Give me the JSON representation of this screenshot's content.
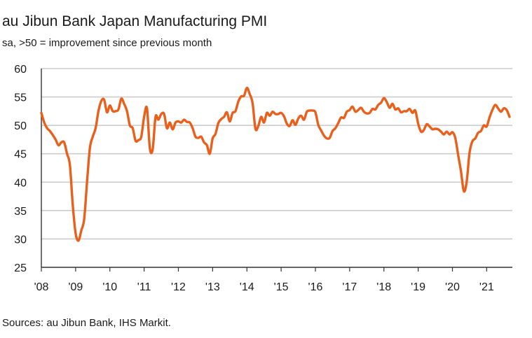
{
  "chart_data": {
    "type": "line",
    "title": "au Jibun Bank Japan Manufacturing PMI",
    "subtitle": "sa, >50 = improvement since previous month",
    "source": "Sources: au Jibun Bank, IHS Markit.",
    "xlabel": "",
    "ylabel": "",
    "ylim": [
      25,
      60
    ],
    "yticks": [
      25,
      30,
      35,
      40,
      45,
      50,
      55,
      60
    ],
    "xlim": [
      2008,
      2021.75
    ],
    "xticks": [
      {
        "value": 2008,
        "label": "'08"
      },
      {
        "value": 2009,
        "label": "'09"
      },
      {
        "value": 2010,
        "label": "'10"
      },
      {
        "value": 2011,
        "label": "'11"
      },
      {
        "value": 2012,
        "label": "'12"
      },
      {
        "value": 2013,
        "label": "'13"
      },
      {
        "value": 2014,
        "label": "'14"
      },
      {
        "value": 2015,
        "label": "'15"
      },
      {
        "value": 2016,
        "label": "'16"
      },
      {
        "value": 2017,
        "label": "'17"
      },
      {
        "value": 2018,
        "label": "'18"
      },
      {
        "value": 2019,
        "label": "'19"
      },
      {
        "value": 2020,
        "label": "'20"
      },
      {
        "value": 2021,
        "label": "'21"
      }
    ],
    "grid": true,
    "line_color": "#e8601c",
    "grid_color": "#cccccc",
    "axis_color": "#333333",
    "series": [
      {
        "name": "Manufacturing PMI",
        "start_year": 2008,
        "frequency": "monthly",
        "values": [
          52.2,
          50.5,
          49.5,
          49.0,
          48.3,
          47.5,
          46.5,
          47.0,
          47.0,
          45.0,
          43.0,
          36.0,
          31.0,
          29.7,
          31.5,
          33.5,
          40.0,
          46.0,
          48.0,
          49.5,
          52.5,
          54.3,
          54.5,
          52.3,
          53.5,
          52.5,
          52.5,
          52.8,
          54.7,
          53.8,
          52.5,
          50.0,
          49.5,
          47.3,
          47.4,
          48.0,
          51.5,
          53.0,
          46.0,
          45.8,
          51.5,
          51.0,
          52.0,
          52.0,
          49.5,
          50.5,
          49.3,
          50.5,
          50.7,
          50.5,
          51.0,
          50.6,
          50.5,
          49.5,
          48.0,
          47.8,
          48.0,
          47.0,
          46.5,
          45.0,
          47.7,
          48.5,
          50.4,
          51.1,
          51.5,
          52.3,
          50.7,
          52.2,
          52.5,
          54.2,
          55.1,
          55.2,
          56.6,
          55.5,
          53.9,
          49.4,
          49.9,
          51.5,
          50.5,
          52.2,
          51.7,
          52.4,
          52.0,
          52.0,
          52.2,
          51.6,
          50.3,
          49.9,
          50.9,
          50.1,
          51.2,
          51.7,
          51.0,
          52.4,
          52.6,
          52.6,
          52.3,
          50.1,
          49.1,
          48.2,
          47.7,
          47.8,
          49.0,
          49.5,
          50.4,
          51.4,
          51.3,
          52.4,
          52.7,
          53.3,
          52.4,
          52.7,
          53.1,
          52.4,
          52.1,
          52.2,
          52.9,
          52.8,
          53.6,
          54.0,
          54.8,
          54.1,
          53.1,
          53.8,
          52.8,
          53.0,
          52.3,
          52.5,
          52.5,
          52.9,
          52.2,
          52.6,
          50.3,
          48.9,
          49.2,
          50.2,
          49.8,
          49.3,
          49.4,
          49.3,
          48.9,
          48.4,
          48.9,
          48.4,
          48.8,
          47.8,
          44.8,
          41.9,
          38.4,
          40.1,
          45.2,
          47.2,
          47.7,
          48.7,
          49.0,
          50.0,
          49.8,
          51.4,
          52.7,
          53.6,
          53.0,
          52.4,
          53.0,
          52.7,
          51.5
        ]
      }
    ]
  }
}
